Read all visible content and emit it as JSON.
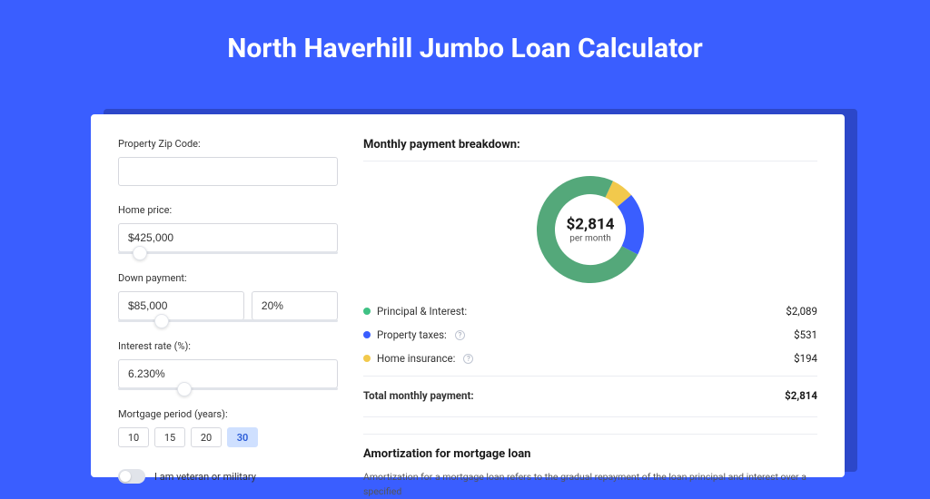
{
  "colors": {
    "page_bg": "#3a5eff",
    "card_shadow": "#2c47c9"
  },
  "header": {
    "title": "North Haverhill Jumbo Loan Calculator"
  },
  "form": {
    "zip": {
      "label": "Property Zip Code:",
      "value": ""
    },
    "home_price": {
      "label": "Home price:",
      "value": "$425,000",
      "slider_pct": 10
    },
    "down_payment": {
      "label": "Down payment:",
      "amount": "$85,000",
      "percent": "20%",
      "slider_pct": 20
    },
    "interest_rate": {
      "label": "Interest rate (%):",
      "value": "6.230%",
      "slider_pct": 30
    },
    "period": {
      "label": "Mortgage period (years):",
      "options": [
        "10",
        "15",
        "20",
        "30"
      ],
      "selected": "30"
    },
    "veteran": {
      "label": "I am veteran or military",
      "on": false
    }
  },
  "breakdown": {
    "title": "Monthly payment breakdown:",
    "donut": {
      "type": "donut",
      "value_label": "$2,814",
      "sub_label": "per month",
      "size": 118,
      "thickness": 20,
      "background": "#ffffff",
      "total_label": "Total monthly payment:",
      "total_value": "$2,814",
      "segments": [
        {
          "key": "principal_interest",
          "label": "Principal & Interest:",
          "display": "$2,089",
          "value": 2089,
          "color": "#54a87a",
          "dot_color": "#3fc184"
        },
        {
          "key": "property_taxes",
          "label": "Property taxes:",
          "display": "$531",
          "value": 531,
          "color": "#3a5eff",
          "dot_color": "#3a5eff",
          "info": true
        },
        {
          "key": "home_insurance",
          "label": "Home insurance:",
          "display": "$194",
          "value": 194,
          "color": "#f2c94c",
          "dot_color": "#f2c94c",
          "info": true
        }
      ]
    }
  },
  "amortization": {
    "title": "Amortization for mortgage loan",
    "text": "Amortization for a mortgage loan refers to the gradual repayment of the loan principal and interest over a specified"
  }
}
